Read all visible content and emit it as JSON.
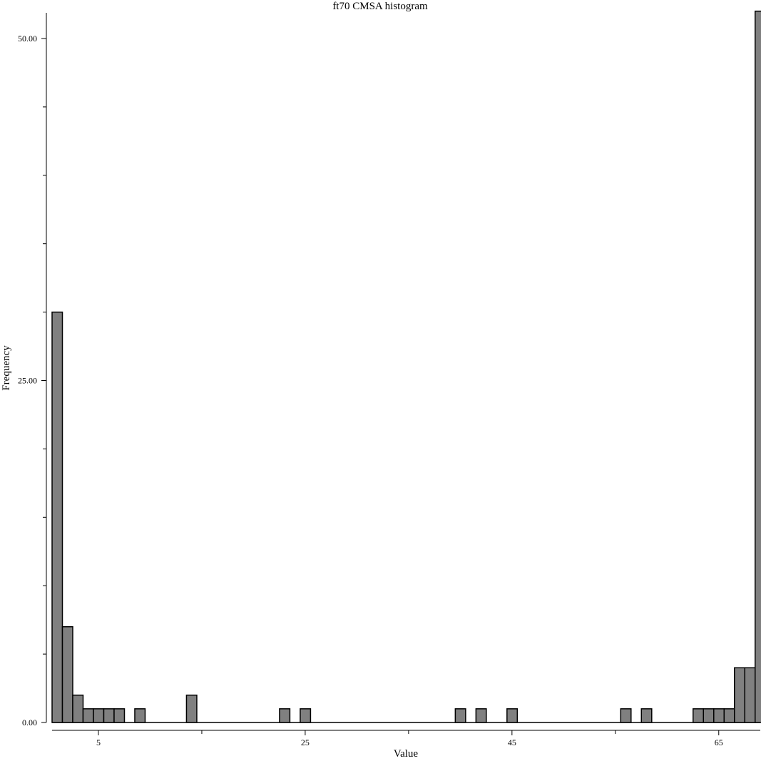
{
  "chart_data": {
    "type": "bar",
    "title": "ft70 CMSA histogram",
    "xlabel": "Value",
    "ylabel": "Frequency",
    "xlim": [
      1,
      69.5
    ],
    "ylim": [
      0,
      52.5
    ],
    "bin_width": 1,
    "x_ticks_labeled": [
      5,
      25,
      45,
      65
    ],
    "x_ticks_minor": [
      15,
      35,
      55
    ],
    "y_tick_labels": [
      "0.00",
      "25.00",
      "50.00"
    ],
    "y_ticks_labeled": [
      0,
      25,
      50
    ],
    "y_ticks_minor": [
      5,
      10,
      15,
      20,
      30,
      35,
      40,
      45
    ],
    "bar_fill": "#808080",
    "bar_stroke": "#000000",
    "bins": [
      {
        "x": 1,
        "count": 30
      },
      {
        "x": 2,
        "count": 7
      },
      {
        "x": 3,
        "count": 2
      },
      {
        "x": 4,
        "count": 1
      },
      {
        "x": 5,
        "count": 1
      },
      {
        "x": 6,
        "count": 1
      },
      {
        "x": 7,
        "count": 1
      },
      {
        "x": 9,
        "count": 1
      },
      {
        "x": 14,
        "count": 2
      },
      {
        "x": 23,
        "count": 1
      },
      {
        "x": 25,
        "count": 1
      },
      {
        "x": 40,
        "count": 1
      },
      {
        "x": 42,
        "count": 1
      },
      {
        "x": 45,
        "count": 1
      },
      {
        "x": 56,
        "count": 1
      },
      {
        "x": 58,
        "count": 1
      },
      {
        "x": 63,
        "count": 1
      },
      {
        "x": 64,
        "count": 1
      },
      {
        "x": 65,
        "count": 1
      },
      {
        "x": 66,
        "count": 1
      },
      {
        "x": 67,
        "count": 4
      },
      {
        "x": 68,
        "count": 4
      },
      {
        "x": 69,
        "count": 52
      }
    ]
  }
}
